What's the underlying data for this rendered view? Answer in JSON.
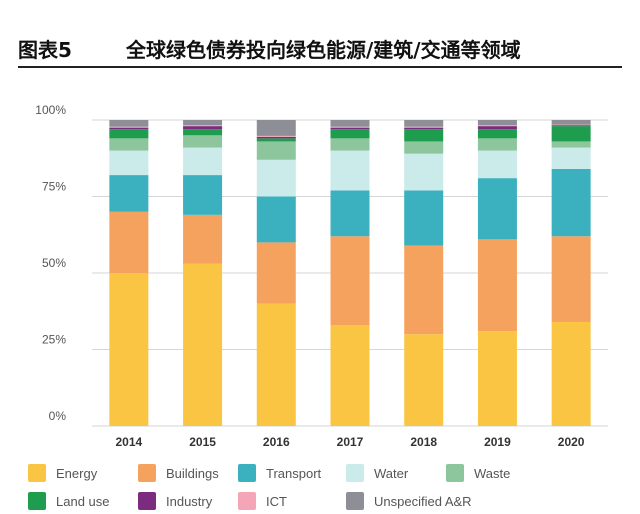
{
  "header": {
    "figure_label": "图表5",
    "title": "全球绿色债券投向绿色能源/建筑/交通等领域"
  },
  "chart_data": {
    "type": "bar",
    "stacked": true,
    "categories": [
      "2014",
      "2015",
      "2016",
      "2017",
      "2018",
      "2019",
      "2020"
    ],
    "ylim": [
      0,
      100
    ],
    "yticks": [
      0,
      25,
      50,
      75,
      100
    ],
    "ytick_labels": [
      "0%",
      "25%",
      "50%",
      "75%",
      "100%"
    ],
    "grid": true,
    "legend_position": "bottom",
    "series": [
      {
        "name": "Energy",
        "color": "#F9C543",
        "values": [
          50,
          53,
          40,
          33,
          30,
          31,
          34
        ]
      },
      {
        "name": "Buildings",
        "color": "#F6A25F",
        "values": [
          20,
          16,
          20,
          29,
          29,
          30,
          28
        ]
      },
      {
        "name": "Transport",
        "color": "#3BB0BE",
        "values": [
          12,
          13,
          15,
          15,
          18,
          20,
          22
        ]
      },
      {
        "name": "Water",
        "color": "#CBEBEA",
        "values": [
          8,
          9,
          12,
          13,
          12,
          9,
          7
        ]
      },
      {
        "name": "Waste",
        "color": "#8DC59D",
        "values": [
          4,
          4,
          6,
          4,
          4,
          4,
          2
        ]
      },
      {
        "name": "Land use",
        "color": "#1F9D4F",
        "values": [
          3,
          2,
          1,
          3,
          4,
          3,
          5
        ]
      },
      {
        "name": "Industry",
        "color": "#7B2C7E",
        "values": [
          0.5,
          1,
          0.5,
          0.5,
          0.5,
          1,
          0.3
        ]
      },
      {
        "name": "ICT",
        "color": "#F4A6B8",
        "values": [
          0.3,
          0.3,
          0.3,
          0.3,
          0.3,
          0.3,
          0.2
        ]
      },
      {
        "name": "Unspecified A&R",
        "color": "#8E8E96",
        "values": [
          2.2,
          1.7,
          5.2,
          2.2,
          2.2,
          1.7,
          1.5
        ]
      }
    ]
  }
}
